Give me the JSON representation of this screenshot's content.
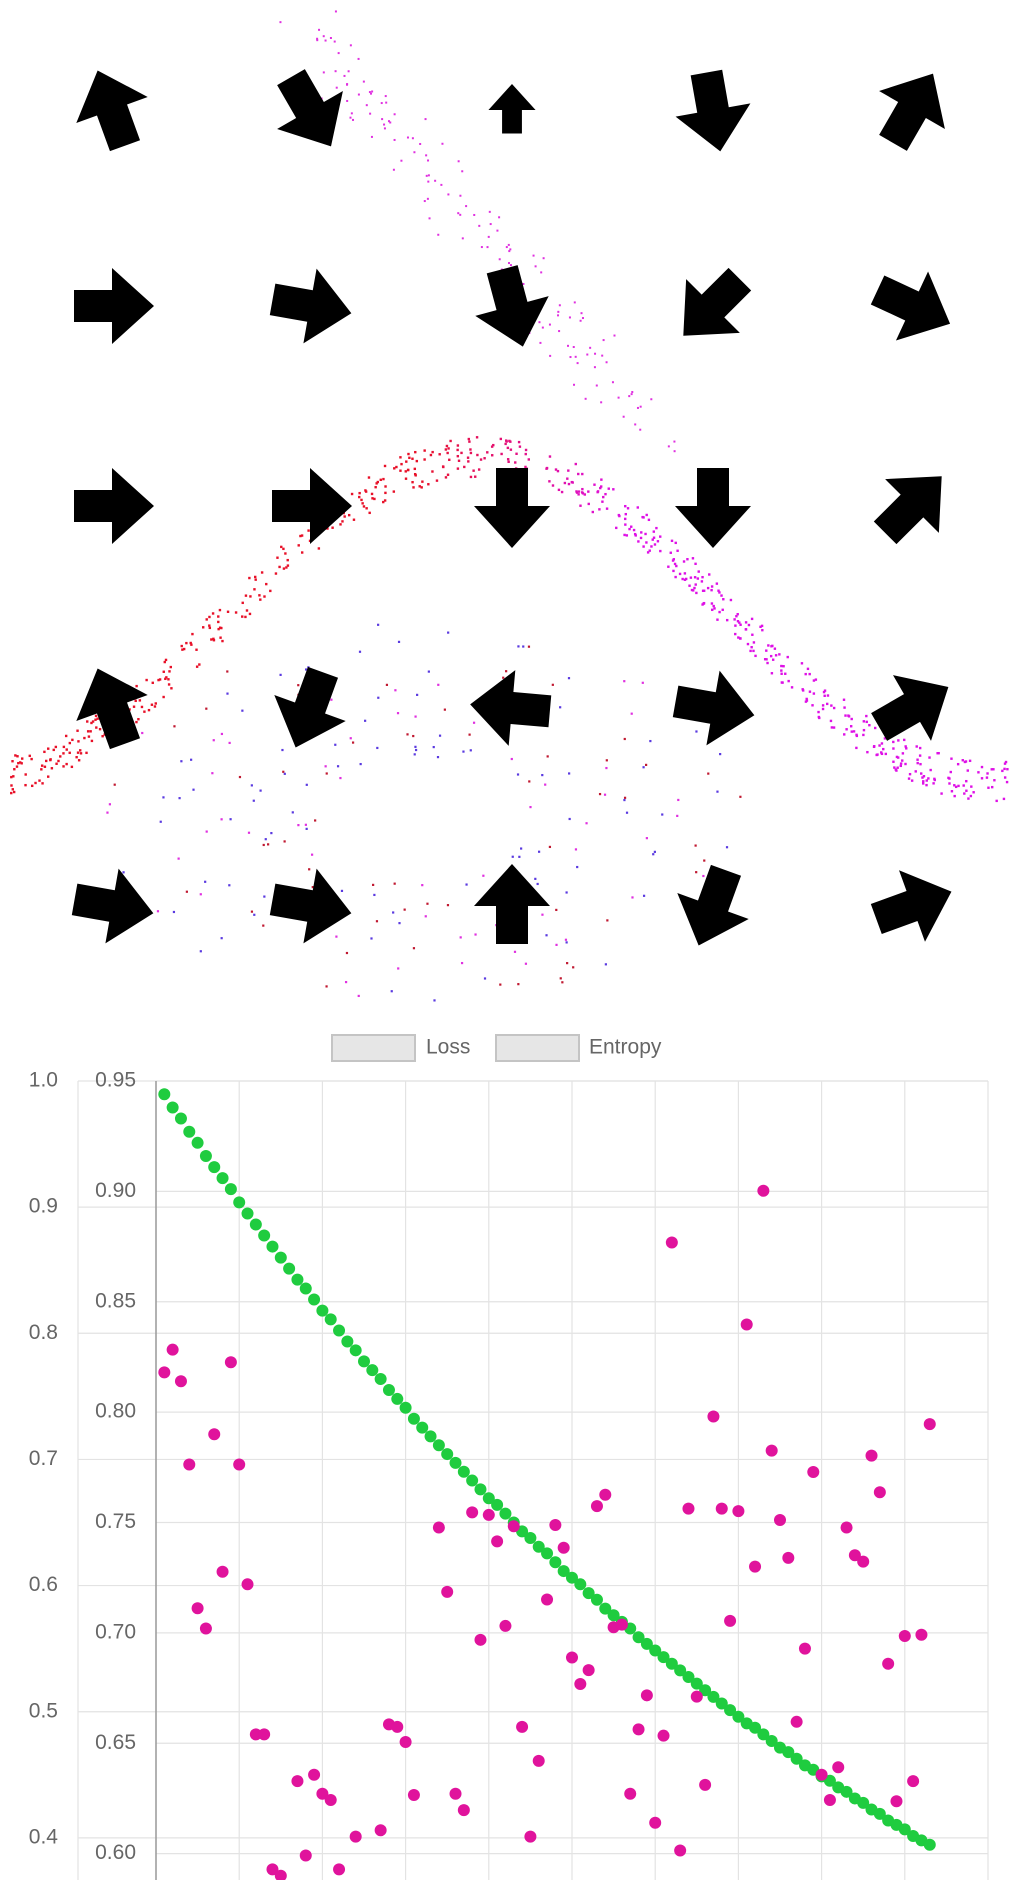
{
  "chart_data": {
    "type": "scatter",
    "series": [
      {
        "name": "Loss",
        "color": "#1fcc3f",
        "values": [
          0.944,
          0.938,
          0.933,
          0.927,
          0.922,
          0.916,
          0.911,
          0.906,
          0.901,
          0.895,
          0.89,
          0.885,
          0.88,
          0.875,
          0.87,
          0.865,
          0.86,
          0.856,
          0.851,
          0.846,
          0.842,
          0.837,
          0.832,
          0.828,
          0.823,
          0.819,
          0.815,
          0.81,
          0.806,
          0.802,
          0.797,
          0.793,
          0.789,
          0.785,
          0.781,
          0.777,
          0.773,
          0.769,
          0.765,
          0.761,
          0.758,
          0.754,
          0.75,
          0.746,
          0.743,
          0.739,
          0.736,
          0.732,
          0.728,
          0.725,
          0.722,
          0.718,
          0.715,
          0.711,
          0.708,
          0.705,
          0.702,
          0.698,
          0.695,
          0.692,
          0.689,
          0.686,
          0.683,
          0.68,
          0.677,
          0.674,
          0.671,
          0.668,
          0.665,
          0.662,
          0.659,
          0.657,
          0.654,
          0.651,
          0.648,
          0.646,
          0.643,
          0.64,
          0.638,
          0.635,
          0.633,
          0.63,
          0.628,
          0.625,
          0.623,
          0.62,
          0.618,
          0.615,
          0.613,
          0.611,
          0.608,
          0.606,
          0.604
        ]
      },
      {
        "name": "Entropy",
        "color": "#e0139c",
        "axis": "y2",
        "values": [
          0.769,
          0.787,
          0.762,
          0.696,
          0.582,
          0.566,
          0.72,
          0.611,
          0.777,
          0.696,
          0.601,
          0.482,
          0.482,
          0.375,
          0.37,
          null,
          0.445,
          0.386,
          0.45,
          0.435,
          0.43,
          0.375,
          null,
          0.401,
          null,
          null,
          0.406,
          0.49,
          0.488,
          0.476,
          0.434,
          null,
          null,
          0.646,
          0.595,
          0.435,
          0.422,
          0.658,
          0.557,
          0.656,
          0.635,
          0.568,
          0.647,
          0.488,
          0.401,
          0.461,
          0.589,
          0.648,
          0.63,
          0.543,
          0.522,
          0.533,
          0.663,
          0.672,
          0.567,
          0.569,
          0.435,
          0.486,
          0.513,
          0.412,
          0.481,
          0.872,
          0.39,
          0.661,
          0.512,
          0.442,
          0.734,
          0.661,
          0.572,
          0.659,
          0.807,
          0.615,
          0.913,
          0.707,
          0.652,
          0.622,
          0.492,
          0.55,
          0.69,
          0.45,
          0.43,
          0.456,
          0.646,
          0.624,
          0.619,
          0.703,
          0.674,
          0.538,
          0.429,
          0.56,
          0.445,
          0.561,
          0.728
        ]
      }
    ],
    "ylim": [
      0.55,
      0.95
    ],
    "yticks": [
      {
        "value": 0.6,
        "label": "0.60"
      },
      0.65,
      {
        "value": 0.7,
        "label": "0.70"
      },
      0.75,
      {
        "value": 0.8,
        "label": "0.80"
      },
      0.85,
      {
        "value": 0.9,
        "label": "0.90"
      },
      0.95
    ],
    "y2lim": [
      0.3,
      1.0
    ],
    "y2ticks": [
      0.4,
      0.5,
      0.6,
      0.7,
      0.8,
      0.9,
      {
        "value": 1,
        "label": "1.0"
      }
    ],
    "grid": true
  }
}
